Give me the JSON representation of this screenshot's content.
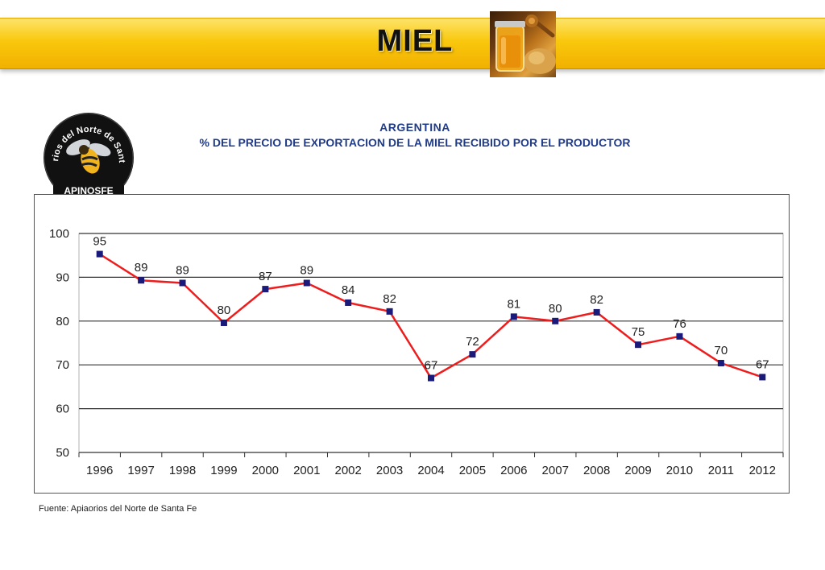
{
  "banner": {
    "title": "MIEL",
    "image_icon": "honey-jar-icon"
  },
  "logo": {
    "ring_text": "Apiarios del Norte de Santa Fe",
    "badge": "APINOSFE",
    "icon": "bee-icon"
  },
  "chart_data": {
    "type": "line",
    "title": "ARGENTINA",
    "subtitle": "% DEL PRECIO DE EXPORTACION DE LA MIEL RECIBIDO POR EL PRODUCTOR",
    "xlabel": "",
    "ylabel": "",
    "categories": [
      "1996",
      "1997",
      "1998",
      "1999",
      "2000",
      "2001",
      "2002",
      "2003",
      "2004",
      "2005",
      "2006",
      "2007",
      "2008",
      "2009",
      "2010",
      "2011",
      "2012"
    ],
    "series": [
      {
        "values": [
          95,
          89,
          89,
          80,
          87,
          89,
          84,
          82,
          67,
          72,
          81,
          80,
          82,
          75,
          76,
          70,
          67
        ],
        "points": [
          95.3,
          89.3,
          88.7,
          79.6,
          87.3,
          88.7,
          84.2,
          82.2,
          67.0,
          72.4,
          81.0,
          80.0,
          82.0,
          74.6,
          76.5,
          70.4,
          67.2
        ],
        "line_color": "#ee1c1c",
        "marker_color": "#1a1a7a"
      }
    ],
    "ylim": [
      50,
      100
    ],
    "yticks": [
      50,
      60,
      70,
      80,
      90,
      100
    ],
    "grid": true,
    "legend": "none"
  },
  "source": "Fuente: Apiaorios del Norte de Santa Fe"
}
